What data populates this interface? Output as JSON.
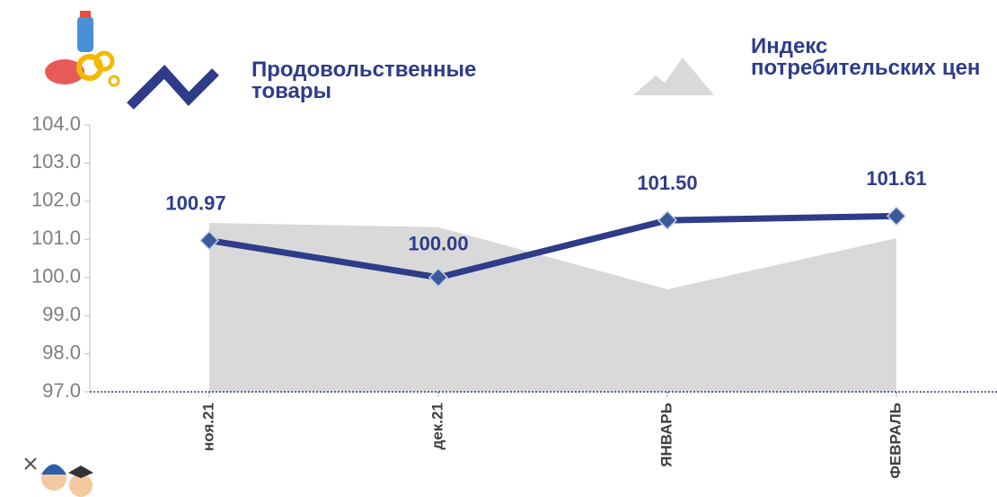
{
  "chart_data": {
    "type": "line",
    "categories": [
      "ноя.21",
      "дек.21",
      "ЯНВАРЬ",
      "ФЕВРАЛЬ"
    ],
    "series": [
      {
        "name": "Продовольственные товары",
        "type": "line",
        "color": "#2e3c8a",
        "values": [
          100.97,
          100.0,
          101.5,
          101.61
        ],
        "value_labels": [
          "100.97",
          "100.00",
          "101.50",
          "101.61"
        ]
      },
      {
        "name": "Индекс потребительских цен",
        "type": "area",
        "color": "#d9d9d9",
        "values": [
          101.43,
          101.32,
          99.69,
          101.03
        ]
      }
    ],
    "ylim": [
      97,
      104
    ],
    "yticks": [
      {
        "value": 97,
        "label": "97.0"
      },
      {
        "value": 98,
        "label": "98.0"
      },
      {
        "value": 99,
        "label": "99.0"
      },
      {
        "value": 100,
        "label": "100.0"
      },
      {
        "value": 101,
        "label": "101.0"
      },
      {
        "value": 102,
        "label": "102.0"
      },
      {
        "value": 103,
        "label": "103.0"
      },
      {
        "value": 104,
        "label": "104.0"
      }
    ],
    "grid": false
  }
}
